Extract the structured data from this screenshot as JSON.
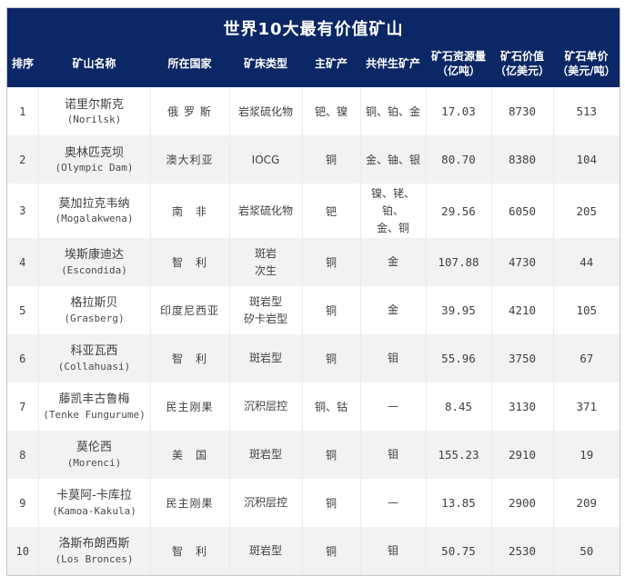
{
  "colors": {
    "header_bg": "#0c2765",
    "header_text": "#ffffff",
    "row_alt_bg": "#f2f2f2",
    "body_text": "#404040",
    "outer_border": "#c6c6c6"
  },
  "chart_data": {
    "type": "table",
    "title": "世界10大最有价值矿山",
    "columns": [
      "排序",
      "矿山名称",
      "所在国家",
      "矿床类型",
      "主矿产",
      "共伴生矿产",
      "矿石资源量\n（亿吨）",
      "矿石价值\n（亿美元）",
      "矿石单价\n（美元/吨）"
    ],
    "rows": [
      {
        "rank": "1",
        "name_cn": "诺里尔斯克",
        "name_en": "(Norilsk)",
        "country": "俄 罗 斯",
        "deposit": "岩浆硫化物",
        "main": "钯、镍",
        "assoc": "铜、铂、金",
        "resource": "17.03",
        "value": "8730",
        "unit_price": "513"
      },
      {
        "rank": "2",
        "name_cn": "奥林匹克坝",
        "name_en": "(Olympic Dam)",
        "country": "澳大利亚",
        "deposit": "IOCG",
        "main": "铜",
        "assoc": "金、铀、银",
        "resource": "80.70",
        "value": "8380",
        "unit_price": "104"
      },
      {
        "rank": "3",
        "name_cn": "莫加拉克韦纳",
        "name_en": "(Mogalakwena)",
        "country": "南　非",
        "deposit": "岩浆硫化物",
        "main": "钯",
        "assoc": "镍、铑、铂、\n金、铜",
        "resource": "29.56",
        "value": "6050",
        "unit_price": "205"
      },
      {
        "rank": "4",
        "name_cn": "埃斯康迪达",
        "name_en": "(Escondida)",
        "country": "智　利",
        "deposit": "斑岩\n次生",
        "main": "铜",
        "assoc": "金",
        "resource": "107.88",
        "value": "4730",
        "unit_price": "44"
      },
      {
        "rank": "5",
        "name_cn": "格拉斯贝",
        "name_en": "(Grasberg)",
        "country": "印度尼西亚",
        "deposit": "斑岩型\n矽卡岩型",
        "main": "铜",
        "assoc": "金",
        "resource": "39.95",
        "value": "4210",
        "unit_price": "105"
      },
      {
        "rank": "6",
        "name_cn": "科亚瓦西",
        "name_en": "(Collahuasi)",
        "country": "智　利",
        "deposit": "斑岩型",
        "main": "铜",
        "assoc": "钼",
        "resource": "55.96",
        "value": "3750",
        "unit_price": "67"
      },
      {
        "rank": "7",
        "name_cn": "藤凯丰古鲁梅",
        "name_en": "(Tenke Fungurume)",
        "country": "民主刚果",
        "deposit": "沉积层控",
        "main": "铜、钴",
        "assoc": "—",
        "resource": "8.45",
        "value": "3130",
        "unit_price": "371"
      },
      {
        "rank": "8",
        "name_cn": "莫伦西",
        "name_en": "(Morenci)",
        "country": "美　国",
        "deposit": "斑岩型",
        "main": "铜",
        "assoc": "钼",
        "resource": "155.23",
        "value": "2910",
        "unit_price": "19"
      },
      {
        "rank": "9",
        "name_cn": "卡莫阿-卡库拉",
        "name_en": "(Kamoa-Kakula)",
        "country": "民主刚果",
        "deposit": "沉积层控",
        "main": "铜",
        "assoc": "—",
        "resource": "13.85",
        "value": "2900",
        "unit_price": "209"
      },
      {
        "rank": "10",
        "name_cn": "洛斯布朗西斯",
        "name_en": "(Los Bronces)",
        "country": "智　利",
        "deposit": "斑岩型",
        "main": "铜",
        "assoc": "钼",
        "resource": "50.75",
        "value": "2530",
        "unit_price": "50"
      }
    ]
  }
}
